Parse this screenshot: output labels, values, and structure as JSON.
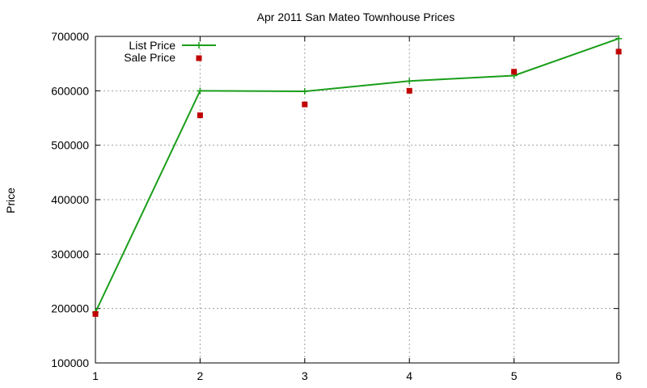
{
  "chart_data": {
    "type": "line",
    "title": "Apr 2011 San Mateo Townhouse Prices",
    "xlabel": "",
    "ylabel": "Price",
    "xlim": [
      1,
      6
    ],
    "ylim": [
      100000,
      700000
    ],
    "x_ticks": [
      "1",
      "2",
      "3",
      "4",
      "5",
      "6"
    ],
    "y_ticks": [
      "100000",
      "200000",
      "300000",
      "400000",
      "500000",
      "600000",
      "700000"
    ],
    "grid": true,
    "legend_position": "top-left",
    "series": [
      {
        "name": "List Price",
        "style": "line-with-points",
        "color": "#1a9e1a",
        "x": [
          1,
          2,
          3,
          4,
          5,
          6
        ],
        "values": [
          193000,
          600000,
          599000,
          618000,
          628000,
          696000
        ]
      },
      {
        "name": "Sale Price",
        "style": "points",
        "color": "#c00000",
        "x": [
          1,
          2,
          3,
          4,
          5,
          6
        ],
        "values": [
          190000,
          555000,
          575000,
          600000,
          635000,
          672000
        ]
      }
    ]
  }
}
